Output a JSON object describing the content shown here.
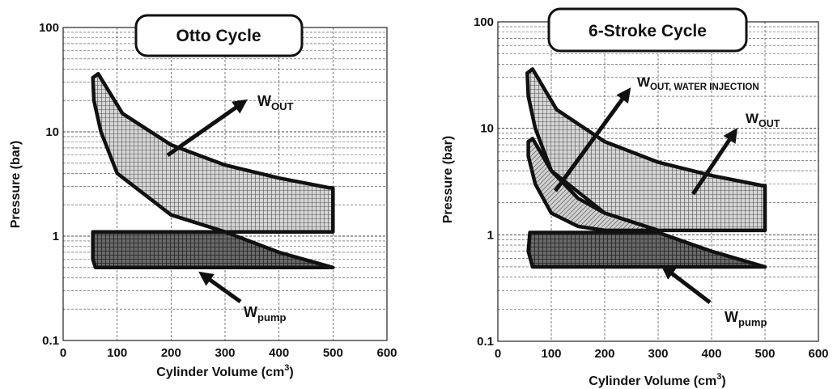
{
  "chart_data": [
    {
      "type": "area",
      "title": "Otto Cycle",
      "xlabel": "Cylinder Volume (cm",
      "xlabel_sup": "3",
      "xlabel_end": ")",
      "ylabel": "Pressure (bar)",
      "x_scale": "linear",
      "y_scale": "log",
      "xlim": [
        0,
        600
      ],
      "ylim": [
        0.1,
        100
      ],
      "x_ticks": [
        "0",
        "100",
        "200",
        "300",
        "400",
        "500",
        "600"
      ],
      "y_ticks": [
        "0.1",
        "1",
        "10",
        "100"
      ],
      "grid": true,
      "series": [
        {
          "name": "WOUT",
          "fill": "light-crosshatch",
          "points": [
            [
              55,
              33
            ],
            [
              65,
              36
            ],
            [
              110,
              15
            ],
            [
              200,
              7.5
            ],
            [
              300,
              4.8
            ],
            [
              400,
              3.6
            ],
            [
              495,
              2.9
            ],
            [
              500,
              2.9
            ],
            [
              500,
              1.1
            ],
            [
              300,
              1.1
            ],
            [
              200,
              1.6
            ],
            [
              100,
              4
            ],
            [
              70,
              10
            ],
            [
              57,
              20
            ],
            [
              55,
              33
            ]
          ]
        },
        {
          "name": "Wpump",
          "fill": "dark-crosshatch",
          "points": [
            [
              55,
              1.1
            ],
            [
              300,
              1.1
            ],
            [
              400,
              0.7
            ],
            [
              500,
              0.5
            ],
            [
              60,
              0.5
            ],
            [
              55,
              0.6
            ],
            [
              55,
              1.1
            ]
          ]
        }
      ],
      "annotations": [
        {
          "main": "W",
          "sub": "OUT"
        },
        {
          "main": "W",
          "sub": "pump"
        }
      ]
    },
    {
      "type": "area",
      "title": "6-Stroke Cycle",
      "xlabel": "Cylinder Volume (cm",
      "xlabel_sup": "3",
      "xlabel_end": ")",
      "ylabel": "Pressure (bar)",
      "x_scale": "linear",
      "y_scale": "log",
      "xlim": [
        0,
        600
      ],
      "ylim": [
        0.1,
        100
      ],
      "x_ticks": [
        "0",
        "100",
        "200",
        "300",
        "400",
        "500",
        "600"
      ],
      "y_ticks": [
        "0.1",
        "1",
        "10",
        "100"
      ],
      "grid": true,
      "series": [
        {
          "name": "WOUT, WATER INJECTION",
          "fill": "light-crosshatch",
          "points": [
            [
              55,
              33
            ],
            [
              65,
              36
            ],
            [
              110,
              15
            ],
            [
              200,
              7.5
            ],
            [
              300,
              4.8
            ],
            [
              400,
              3.6
            ],
            [
              495,
              2.9
            ],
            [
              500,
              2.9
            ],
            [
              500,
              1.1
            ],
            [
              300,
              1.1
            ],
            [
              200,
              1.6
            ],
            [
              100,
              4
            ],
            [
              70,
              10
            ],
            [
              57,
              20
            ],
            [
              55,
              33
            ]
          ]
        },
        {
          "name": "WOUT",
          "fill": "hatch",
          "points": [
            [
              57,
              7.5
            ],
            [
              65,
              8
            ],
            [
              100,
              4
            ],
            [
              150,
              2.2
            ],
            [
              200,
              1.6
            ],
            [
              300,
              1.1
            ],
            [
              200,
              1.1
            ],
            [
              150,
              1.2
            ],
            [
              100,
              1.6
            ],
            [
              70,
              3
            ],
            [
              57,
              5.5
            ],
            [
              57,
              7.5
            ]
          ]
        },
        {
          "name": "Wpump",
          "fill": "dark-crosshatch",
          "points": [
            [
              60,
              1.05
            ],
            [
              300,
              1.05
            ],
            [
              400,
              0.7
            ],
            [
              500,
              0.5
            ],
            [
              65,
              0.5
            ],
            [
              57,
              0.7
            ],
            [
              60,
              1.05
            ]
          ]
        }
      ],
      "annotations": [
        {
          "main": "W",
          "sub": "OUT, WATER INJECTION"
        },
        {
          "main": "W",
          "sub": "OUT"
        },
        {
          "main": "W",
          "sub": "pump"
        }
      ]
    }
  ]
}
